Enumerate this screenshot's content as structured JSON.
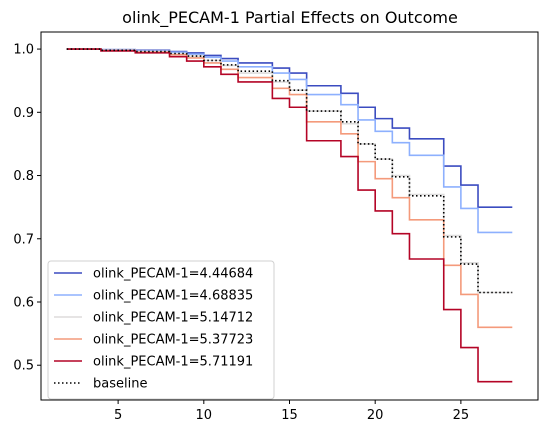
{
  "chart_data": {
    "type": "line",
    "title": "olink_PECAM-1 Partial Effects on Outcome",
    "xlabel": "",
    "ylabel": "",
    "xlim": [
      0.5,
      29.5
    ],
    "ylim": [
      0.445,
      1.027
    ],
    "x_ticks": [
      5,
      10,
      15,
      20,
      25
    ],
    "y_ticks": [
      0.5,
      0.6,
      0.7,
      0.8,
      0.9,
      1.0
    ],
    "x_tick_labels": [
      "5",
      "10",
      "15",
      "20",
      "25"
    ],
    "y_tick_labels": [
      "0.5",
      "0.6",
      "0.7",
      "0.8",
      "0.9",
      "1.0"
    ],
    "grid": false,
    "legend_position": "lower-left",
    "step": "post",
    "x": [
      2,
      4,
      6,
      8,
      9,
      10,
      11,
      12,
      14,
      15,
      16,
      18,
      19,
      20,
      21,
      22,
      24,
      25,
      26,
      28
    ],
    "series": [
      {
        "name": "olink_PECAM-1=4.44684",
        "color": "#3b4cc0",
        "dash": "solid",
        "values": [
          1.0,
          0.999,
          0.998,
          0.996,
          0.994,
          0.99,
          0.985,
          0.978,
          0.97,
          0.962,
          0.942,
          0.93,
          0.908,
          0.89,
          0.875,
          0.858,
          0.815,
          0.785,
          0.75,
          0.75
        ]
      },
      {
        "name": "olink_PECAM-1=4.68835",
        "color": "#8db0fe",
        "dash": "solid",
        "values": [
          1.0,
          0.999,
          0.997,
          0.995,
          0.992,
          0.987,
          0.981,
          0.972,
          0.962,
          0.952,
          0.928,
          0.912,
          0.888,
          0.87,
          0.852,
          0.832,
          0.782,
          0.748,
          0.71,
          0.71
        ]
      },
      {
        "name": "olink_PECAM-1=5.14712",
        "color": "#dddcdc",
        "dash": "solid",
        "values": [
          1.0,
          0.998,
          0.996,
          0.993,
          0.989,
          0.982,
          0.974,
          0.962,
          0.948,
          0.935,
          0.902,
          0.882,
          0.85,
          0.826,
          0.8,
          0.77,
          0.705,
          0.662,
          0.615,
          0.615
        ]
      },
      {
        "name": "olink_PECAM-1=5.37723",
        "color": "#f49a7b",
        "dash": "solid",
        "values": [
          1.0,
          0.998,
          0.995,
          0.991,
          0.986,
          0.978,
          0.968,
          0.955,
          0.938,
          0.928,
          0.885,
          0.866,
          0.822,
          0.795,
          0.765,
          0.73,
          0.658,
          0.612,
          0.56,
          0.56
        ]
      },
      {
        "name": "olink_PECAM-1=5.71191",
        "color": "#b40426",
        "dash": "solid",
        "values": [
          1.0,
          0.997,
          0.994,
          0.988,
          0.981,
          0.972,
          0.96,
          0.948,
          0.922,
          0.908,
          0.855,
          0.83,
          0.777,
          0.744,
          0.708,
          0.668,
          0.588,
          0.528,
          0.474,
          0.474
        ]
      },
      {
        "name": "baseline",
        "color": "#000000",
        "dash": "dotted",
        "values": [
          1.0,
          0.998,
          0.996,
          0.993,
          0.989,
          0.982,
          0.975,
          0.965,
          0.95,
          0.935,
          0.902,
          0.885,
          0.85,
          0.826,
          0.798,
          0.768,
          0.703,
          0.66,
          0.615,
          0.615
        ]
      }
    ]
  }
}
